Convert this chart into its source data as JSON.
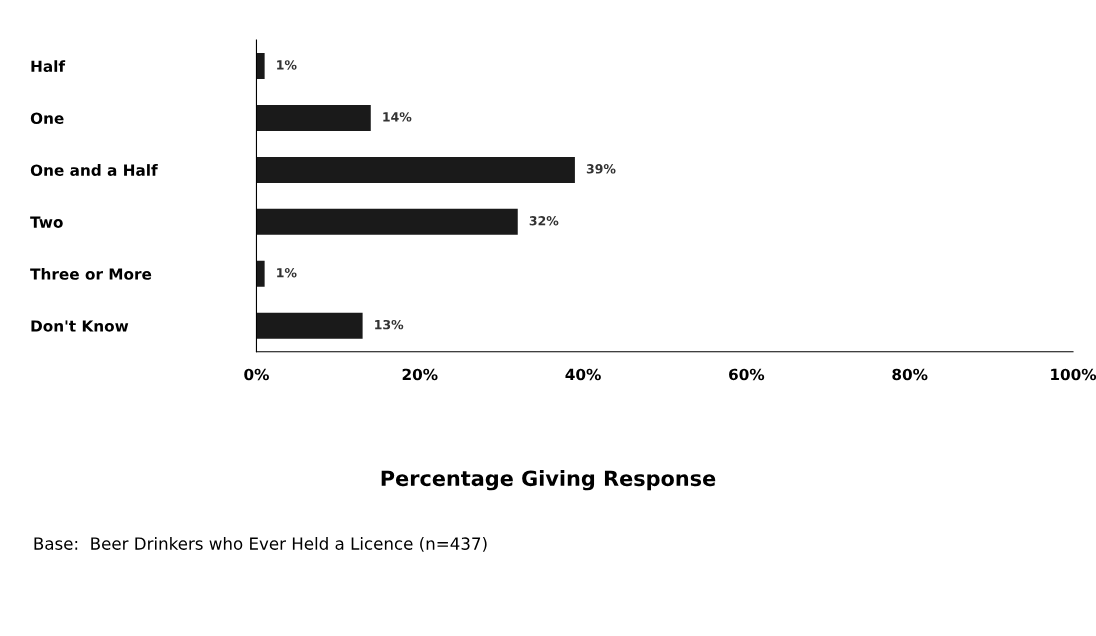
{
  "chart_data": {
    "type": "bar",
    "orientation": "horizontal",
    "categories": [
      "Half",
      "One",
      "One and a Half",
      "Two",
      "Three or More",
      "Don't Know"
    ],
    "values": [
      1,
      14,
      39,
      32,
      1,
      13
    ],
    "value_labels": [
      "1%",
      "14%",
      "39%",
      "32%",
      "1%",
      "13%"
    ],
    "color": "#1a1a1a",
    "xlim": [
      0,
      100
    ],
    "xticks": [
      {
        "value": 0,
        "label": "0%"
      },
      {
        "value": 20,
        "label": "20%"
      },
      {
        "value": 40,
        "label": "40%"
      },
      {
        "value": 60,
        "label": "60%"
      },
      {
        "value": 80,
        "label": "80%"
      },
      {
        "value": 100,
        "label": "100%"
      }
    ],
    "xlabel": "Percentage Giving Response",
    "annotations": [
      "Base:  Beer Drinkers who Ever Held a Licence (n=437)"
    ],
    "grid": false,
    "legend": false
  }
}
